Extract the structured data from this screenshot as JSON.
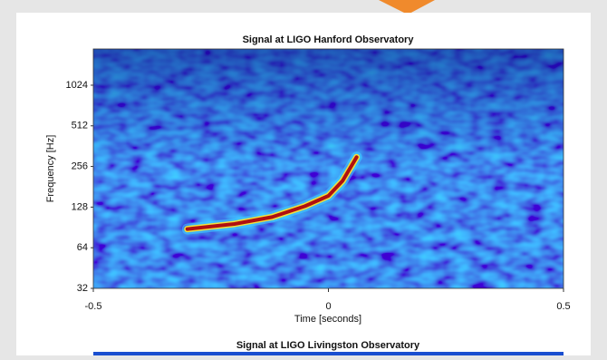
{
  "chart_data": {
    "type": "spectrogram",
    "title": "Signal at LIGO Hanford Observatory",
    "xlabel": "Time [seconds]",
    "ylabel": "Frequency [Hz]",
    "xlim": [
      -0.5,
      0.5
    ],
    "xticks": [
      -0.5,
      0,
      0.5
    ],
    "ylim": [
      32,
      1900
    ],
    "yticks": [
      32,
      64,
      128,
      256,
      512,
      1024
    ],
    "ylog": true,
    "track": {
      "x": [
        -0.3,
        -0.2,
        -0.12,
        -0.05,
        0.0,
        0.03,
        0.06
      ],
      "y": [
        88,
        96,
        108,
        130,
        155,
        200,
        300
      ]
    },
    "next_title": "Signal at LIGO Livingston Observatory"
  }
}
